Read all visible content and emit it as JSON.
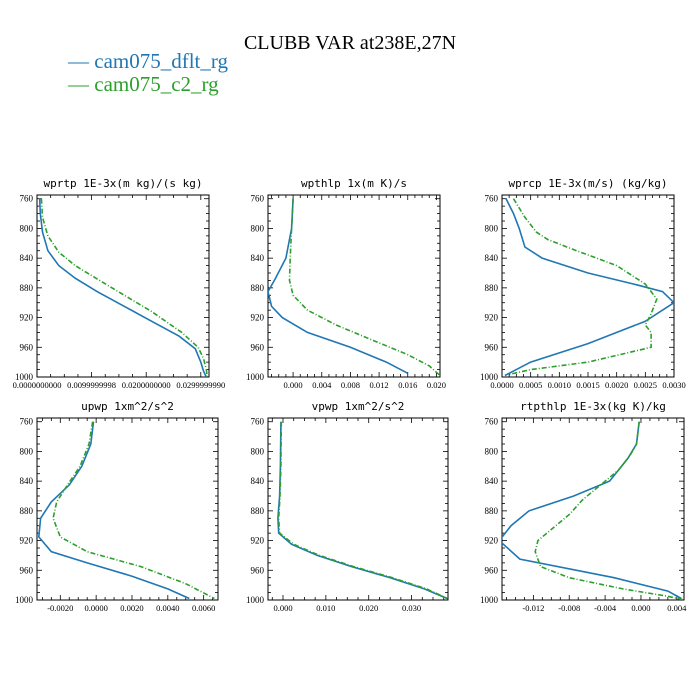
{
  "figure": {
    "title": "CLUBB VAR at238E,27N",
    "legend": [
      {
        "label": "— cam075_dflt_rg",
        "color": "#1f77b4"
      },
      {
        "label": "— cam075_c2_rg",
        "color": "#2ca02c"
      }
    ]
  },
  "chart_data": [
    {
      "type": "line",
      "title": "wprtp  1E-3x(m kg)/(s kg)",
      "xlim": [
        0.0,
        0.0315
      ],
      "ylim": [
        1000,
        755
      ],
      "yticks": [
        760,
        800,
        840,
        880,
        920,
        960,
        1000
      ],
      "xticks": [
        0.0,
        0.0099999998,
        0.02,
        0.029999999
      ],
      "xticklabels": [
        "0.0000000000",
        "0.0099999998",
        "0.0200000000",
        "0.0299999990"
      ],
      "series": [
        {
          "name": "cam075_dflt_rg",
          "color": "#1f77b4",
          "x": [
            0.0005,
            0.0006,
            0.001,
            0.002,
            0.004,
            0.007,
            0.011,
            0.016,
            0.021,
            0.026,
            0.029,
            0.03,
            0.0305,
            0.031
          ],
          "y": [
            760,
            780,
            805,
            830,
            850,
            867,
            885,
            905,
            925,
            945,
            962,
            980,
            992,
            1000
          ]
        },
        {
          "name": "cam075_c2_rg",
          "color": "#2ca02c",
          "x": [
            0.0008,
            0.001,
            0.002,
            0.004,
            0.007,
            0.011,
            0.016,
            0.021,
            0.0265,
            0.0295,
            0.0305,
            0.031,
            0.0312
          ],
          "y": [
            760,
            785,
            810,
            832,
            850,
            868,
            890,
            912,
            940,
            960,
            975,
            990,
            1000
          ]
        }
      ]
    },
    {
      "type": "line",
      "title": "wpthlp  1x(m K)/s",
      "xlim": [
        -0.0035,
        0.0205
      ],
      "ylim": [
        1000,
        755
      ],
      "yticks": [
        760,
        800,
        840,
        880,
        920,
        960,
        1000
      ],
      "xticks": [
        0.0,
        0.004,
        0.008,
        0.012,
        0.016,
        0.02
      ],
      "xticklabels": [
        "0.000",
        "0.004",
        "0.008",
        "0.012",
        "0.016",
        "0.020"
      ],
      "series": [
        {
          "name": "cam075_dflt_rg",
          "color": "#1f77b4",
          "x": [
            0.0,
            -0.0002,
            -0.001,
            -0.0025,
            -0.0035,
            -0.003,
            -0.0015,
            0.002,
            0.008,
            0.013,
            0.016
          ],
          "y": [
            760,
            800,
            840,
            868,
            885,
            905,
            920,
            940,
            960,
            980,
            995
          ]
        },
        {
          "name": "cam075_c2_rg",
          "color": "#2ca02c",
          "x": [
            0.0,
            -0.0002,
            -0.0004,
            -0.0005,
            0.0,
            0.002,
            0.006,
            0.011,
            0.016,
            0.019,
            0.0205
          ],
          "y": [
            760,
            800,
            840,
            870,
            890,
            910,
            930,
            950,
            970,
            985,
            998
          ]
        }
      ]
    },
    {
      "type": "line",
      "title": "wprcp  1E-3x(m/s) (kg/kg)",
      "xlim": [
        0.0,
        0.003
      ],
      "ylim": [
        1000,
        755
      ],
      "yticks": [
        760,
        800,
        840,
        880,
        920,
        960,
        1000
      ],
      "xticks": [
        0.0,
        0.0005,
        0.001,
        0.0015,
        0.002,
        0.0025,
        0.003
      ],
      "xticklabels": [
        "0.0000",
        "0.0005",
        "0.0010",
        "0.0015",
        "0.0020",
        "0.0025",
        "0.0030"
      ],
      "series": [
        {
          "name": "cam075_dflt_rg",
          "color": "#1f77b4",
          "x": [
            7e-05,
            0.0002,
            0.0003,
            0.0004,
            0.0007,
            0.0015,
            0.0023,
            0.0028,
            0.003,
            0.0025,
            0.0015,
            0.0005,
            5e-05
          ],
          "y": [
            760,
            780,
            800,
            825,
            840,
            860,
            875,
            885,
            900,
            925,
            955,
            980,
            998
          ]
        },
        {
          "name": "cam075_c2_rg",
          "color": "#2ca02c",
          "x": [
            0.0002,
            0.0004,
            0.0006,
            0.0008,
            0.0013,
            0.002,
            0.0025,
            0.0027,
            0.0026,
            0.0025,
            0.0026,
            0.0026,
            0.0015,
            0.0005,
            0.0001
          ],
          "y": [
            760,
            785,
            805,
            815,
            830,
            850,
            875,
            895,
            915,
            930,
            940,
            960,
            980,
            990,
            997
          ]
        }
      ]
    },
    {
      "type": "line",
      "title": "upwp  1xm^2/s^2",
      "xlim": [
        -0.0033,
        0.0068
      ],
      "ylim": [
        1000,
        755
      ],
      "yticks": [
        760,
        800,
        840,
        880,
        920,
        960,
        1000
      ],
      "xticks": [
        -0.002,
        0.0,
        0.002,
        0.004,
        0.006
      ],
      "xticklabels": [
        "-0.0020",
        "0.0000",
        "0.0020",
        "0.0040",
        "0.0060"
      ],
      "series": [
        {
          "name": "cam075_dflt_rg",
          "color": "#1f77b4",
          "x": [
            -0.00015,
            -0.0003,
            -0.0008,
            -0.0015,
            -0.0025,
            -0.0031,
            -0.0032,
            -0.0025,
            -0.0005,
            0.002,
            0.004,
            0.0052
          ],
          "y": [
            760,
            790,
            820,
            845,
            868,
            890,
            915,
            935,
            950,
            968,
            985,
            998
          ]
        },
        {
          "name": "cam075_c2_rg",
          "color": "#2ca02c",
          "x": [
            -0.0002,
            -0.0004,
            -0.0009,
            -0.0016,
            -0.0022,
            -0.0024,
            -0.002,
            -0.0005,
            0.0025,
            0.005,
            0.0066
          ],
          "y": [
            760,
            790,
            820,
            845,
            868,
            890,
            915,
            935,
            955,
            978,
            998
          ]
        }
      ]
    },
    {
      "type": "line",
      "title": "vpwp  1xm^2/s^2",
      "xlim": [
        -0.0035,
        0.0385
      ],
      "ylim": [
        1000,
        755
      ],
      "yticks": [
        760,
        800,
        840,
        880,
        920,
        960,
        1000
      ],
      "xticks": [
        0.0,
        0.01,
        0.02,
        0.03
      ],
      "xticklabels": [
        "0.000",
        "0.010",
        "0.020",
        "0.030"
      ],
      "series": [
        {
          "name": "cam075_dflt_rg",
          "color": "#1f77b4",
          "x": [
            -0.0005,
            -0.0006,
            -0.0008,
            -0.0012,
            -0.001,
            0.002,
            0.008,
            0.016,
            0.025,
            0.033,
            0.0383
          ],
          "y": [
            760,
            820,
            860,
            890,
            910,
            925,
            940,
            955,
            970,
            985,
            998
          ]
        },
        {
          "name": "cam075_c2_rg",
          "color": "#2ca02c",
          "x": [
            -0.0004,
            -0.0005,
            -0.0007,
            -0.001,
            -0.0008,
            0.0025,
            0.0085,
            0.0165,
            0.0255,
            0.0335,
            0.0384
          ],
          "y": [
            760,
            820,
            860,
            890,
            910,
            925,
            940,
            955,
            970,
            985,
            998
          ]
        }
      ]
    },
    {
      "type": "line",
      "title": "rtpthlp  1E-3x(kg K)/kg",
      "xlim": [
        -0.0155,
        0.0048
      ],
      "ylim": [
        1000,
        755
      ],
      "yticks": [
        760,
        800,
        840,
        880,
        920,
        960,
        1000
      ],
      "xticks": [
        -0.012,
        -0.008,
        -0.004,
        0.0,
        0.004
      ],
      "xticklabels": [
        "-0.012",
        "-0.008",
        "-0.004",
        "0.000",
        "0.004"
      ],
      "series": [
        {
          "name": "cam075_dflt_rg",
          "color": "#1f77b4",
          "x": [
            -0.0002,
            -0.0005,
            -0.0015,
            -0.0035,
            -0.0075,
            -0.0125,
            -0.0145,
            -0.0158,
            -0.0135,
            -0.003,
            0.003,
            0.0045
          ],
          "y": [
            760,
            790,
            810,
            840,
            860,
            880,
            900,
            920,
            945,
            970,
            988,
            998
          ]
        },
        {
          "name": "cam075_c2_rg",
          "color": "#2ca02c",
          "x": [
            -0.0002,
            -0.0005,
            -0.0012,
            -0.0025,
            -0.0045,
            -0.0065,
            -0.008,
            -0.0095,
            -0.0115,
            -0.0118,
            -0.0112,
            -0.008,
            -0.002,
            0.003,
            0.0048
          ],
          "y": [
            760,
            790,
            805,
            825,
            845,
            865,
            885,
            900,
            920,
            935,
            955,
            970,
            985,
            995,
            1000
          ]
        }
      ]
    }
  ]
}
